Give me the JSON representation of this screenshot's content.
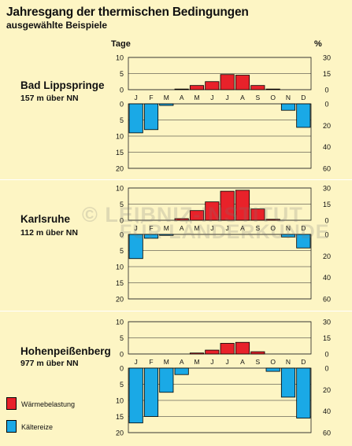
{
  "title": "Jahresgang der thermischen Bedingungen",
  "subtitle": "ausgewählte Beispiele",
  "axis_units": {
    "left": "Tage",
    "right": "%"
  },
  "legend": {
    "warm": {
      "label": "Wärmebelastung",
      "color": "#e8222a"
    },
    "cold": {
      "label": "Kältereize",
      "color": "#1aa9e6"
    }
  },
  "watermark": {
    "line1": "© LEIBNIZ-INSTITUT",
    "line2": "FÜR LÄNDERKUNDE"
  },
  "chart_data": [
    {
      "type": "bar",
      "title": "Bad Lippspringe",
      "subtitle": "157 m über NN",
      "categories": [
        "J",
        "F",
        "M",
        "A",
        "M",
        "J",
        "J",
        "A",
        "S",
        "O",
        "N",
        "D"
      ],
      "left_ticks_upper": [
        10,
        5,
        0
      ],
      "left_ticks_lower": [
        0,
        5,
        10,
        15,
        20
      ],
      "right_ticks_upper": [
        30,
        15,
        0
      ],
      "right_ticks_lower": [
        0,
        20,
        40,
        60
      ],
      "series": [
        {
          "name": "Wärmebelastung",
          "values": [
            0,
            0,
            0,
            0.2,
            1.3,
            2.5,
            4.7,
            4.5,
            1.3,
            0.2,
            0,
            0
          ]
        },
        {
          "name": "Kältereize",
          "values": [
            9,
            8,
            0.5,
            0,
            0,
            0,
            0,
            0,
            0,
            0,
            2,
            7.3
          ]
        }
      ]
    },
    {
      "type": "bar",
      "title": "Karlsruhe",
      "subtitle": "112 m über NN",
      "categories": [
        "J",
        "F",
        "M",
        "A",
        "M",
        "J",
        "J",
        "A",
        "S",
        "O",
        "N",
        "D"
      ],
      "left_ticks_upper": [
        10,
        5,
        0
      ],
      "left_ticks_lower": [
        0,
        5,
        10,
        15,
        20
      ],
      "right_ticks_upper": [
        30,
        15,
        0
      ],
      "right_ticks_lower": [
        0,
        20,
        40,
        60
      ],
      "series": [
        {
          "name": "Wärmebelastung",
          "values": [
            0,
            0,
            0,
            0.5,
            3,
            5.7,
            9,
            9.3,
            3.5,
            0.3,
            0,
            0
          ]
        },
        {
          "name": "Kältereize",
          "values": [
            7.5,
            1.2,
            0.3,
            0,
            0,
            0,
            0,
            0,
            0,
            0,
            0.8,
            4.2
          ]
        }
      ]
    },
    {
      "type": "bar",
      "title": "Hohenpeißenberg",
      "subtitle": "977 m über NN",
      "categories": [
        "J",
        "F",
        "M",
        "A",
        "M",
        "J",
        "J",
        "A",
        "S",
        "O",
        "N",
        "D"
      ],
      "left_ticks_upper": [
        10,
        5,
        0
      ],
      "left_ticks_lower": [
        0,
        5,
        10,
        15,
        20
      ],
      "right_ticks_upper": [
        30,
        15,
        0
      ],
      "right_ticks_lower": [
        0,
        20,
        40,
        60
      ],
      "series": [
        {
          "name": "Wärmebelastung",
          "values": [
            0,
            0,
            0,
            0,
            0.3,
            1.2,
            3.3,
            3.6,
            0.7,
            0,
            0,
            0
          ]
        },
        {
          "name": "Kältereize",
          "values": [
            17,
            15,
            7.5,
            2,
            0,
            0,
            0,
            0,
            0,
            1,
            9,
            15.5
          ]
        }
      ]
    }
  ]
}
